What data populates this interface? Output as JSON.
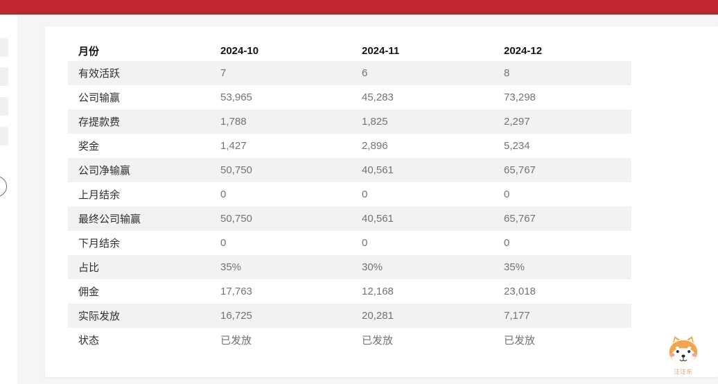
{
  "topbar": {
    "color": "#c2262e",
    "border_color": "#9d3231"
  },
  "table": {
    "columns": [
      "月份",
      "2024-10",
      "2024-11",
      "2024-12"
    ],
    "rows": [
      {
        "label": "有效活跃",
        "values": [
          "7",
          "6",
          "8"
        ]
      },
      {
        "label": "公司输赢",
        "values": [
          "53,965",
          "45,283",
          "73,298"
        ]
      },
      {
        "label": "存提款费",
        "values": [
          "1,788",
          "1,825",
          "2,297"
        ]
      },
      {
        "label": "奖金",
        "values": [
          "1,427",
          "2,896",
          "5,234"
        ]
      },
      {
        "label": "公司净输赢",
        "values": [
          "50,750",
          "40,561",
          "65,767"
        ]
      },
      {
        "label": "上月结余",
        "values": [
          "0",
          "0",
          "0"
        ]
      },
      {
        "label": "最终公司输赢",
        "values": [
          "50,750",
          "40,561",
          "65,767"
        ]
      },
      {
        "label": "下月结余",
        "values": [
          "0",
          "0",
          "0"
        ]
      },
      {
        "label": "占比",
        "values": [
          "35%",
          "30%",
          "35%"
        ]
      },
      {
        "label": "佣金",
        "values": [
          "17,763",
          "12,168",
          "23,018"
        ]
      },
      {
        "label": "实际发放",
        "values": [
          "16,725",
          "20,281",
          "7,177"
        ]
      },
      {
        "label": "状态",
        "values": [
          "已发放",
          "已发放",
          "已发放"
        ]
      }
    ]
  },
  "mascot": {
    "caption": "汪汪乐"
  }
}
